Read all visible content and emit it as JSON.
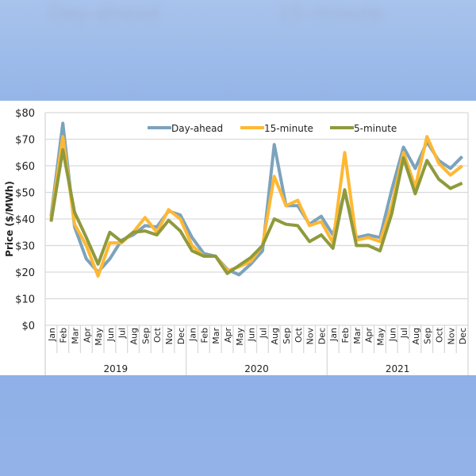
{
  "chart_data": {
    "type": "line",
    "title": "",
    "xlabel": "",
    "ylabel": "Price ($/MWh)",
    "ylim": [
      0,
      80
    ],
    "yticks": [
      "$0",
      "$10",
      "$20",
      "$30",
      "$40",
      "$50",
      "$60",
      "$70",
      "$80"
    ],
    "grid": true,
    "legend_position": "top",
    "years": [
      "2019",
      "2020",
      "2021"
    ],
    "months": [
      "Jan",
      "Feb",
      "Mar",
      "Apr",
      "May",
      "Jun",
      "Jul",
      "Aug",
      "Sep",
      "Oct",
      "Nov",
      "Dec"
    ],
    "series": [
      {
        "name": "Day-ahead",
        "color": "#7ba3bd",
        "values": [
          41,
          76,
          37,
          25,
          20,
          25,
          32,
          34,
          37.5,
          37,
          43,
          41.5,
          33,
          27,
          26,
          21,
          19,
          23,
          28,
          68,
          45,
          45,
          38,
          41,
          34,
          50,
          33,
          34,
          33,
          51,
          67,
          59,
          69,
          62,
          59,
          63.5
        ]
      },
      {
        "name": "15-minute",
        "color": "#ffb833",
        "values": [
          40,
          71,
          38,
          30,
          18.5,
          31,
          31,
          35,
          40.5,
          35,
          43.5,
          40,
          30,
          26,
          26,
          20.5,
          22,
          24,
          30,
          56,
          45,
          47,
          37.5,
          39,
          31,
          65,
          32,
          33,
          31.5,
          45,
          65,
          52,
          71,
          61,
          56.5,
          60
        ]
      },
      {
        "name": "5-minute",
        "color": "#8f9a3c",
        "values": [
          39,
          66,
          42.5,
          33,
          23,
          35,
          31.5,
          35,
          35.5,
          34,
          39.5,
          35.5,
          28,
          26,
          26,
          19.5,
          22.5,
          25.5,
          30,
          40,
          38,
          37.5,
          31.5,
          34,
          29,
          51,
          30,
          30,
          28,
          42,
          63,
          49.5,
          62,
          55,
          51.5,
          53.5
        ]
      }
    ]
  }
}
